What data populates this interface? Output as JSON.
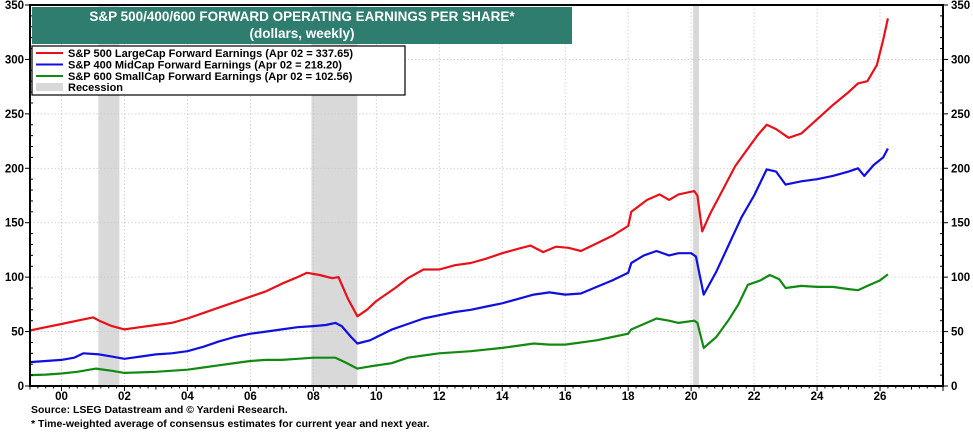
{
  "chart_data": {
    "type": "line",
    "title": "S&P 500/400/600 FORWARD OPERATING EARNINGS PER SHARE*",
    "subtitle": "(dollars, weekly)",
    "xlabel": "",
    "ylabel": "",
    "xlim": [
      1999.0,
      2028.0
    ],
    "ylim": [
      0,
      350
    ],
    "grid": true,
    "legend_position": "top-left",
    "x_ticks": [
      2000,
      2002,
      2004,
      2006,
      2008,
      2010,
      2012,
      2014,
      2016,
      2018,
      2020,
      2022,
      2024,
      2026
    ],
    "x_tick_labels": [
      "00",
      "02",
      "04",
      "06",
      "08",
      "10",
      "12",
      "14",
      "16",
      "18",
      "20",
      "22",
      "24",
      "26"
    ],
    "y_ticks": [
      0,
      50,
      100,
      150,
      200,
      250,
      300,
      350
    ],
    "y_tick_labels": [
      "0",
      "50",
      "100",
      "150",
      "200",
      "250",
      "300",
      "350"
    ],
    "series": [
      {
        "name": "S&P 500 LargeCap Forward Earnings (Apr 02 = 337.65)",
        "color": "#e8111a",
        "x": [
          1999.0,
          1999.5,
          2000.0,
          2000.5,
          2001.0,
          2001.2,
          2001.6,
          2002.0,
          2002.5,
          2003.0,
          2003.5,
          2004.0,
          2004.5,
          2005.0,
          2005.5,
          2006.0,
          2006.5,
          2007.0,
          2007.5,
          2007.8,
          2008.2,
          2008.6,
          2008.8,
          2009.1,
          2009.4,
          2009.7,
          2010.0,
          2010.6,
          2011.0,
          2011.5,
          2012.0,
          2012.5,
          2013.0,
          2013.5,
          2014.0,
          2014.5,
          2014.9,
          2015.3,
          2015.7,
          2016.1,
          2016.5,
          2017.0,
          2017.5,
          2018.0,
          2018.1,
          2018.6,
          2019.0,
          2019.3,
          2019.6,
          2020.1,
          2020.2,
          2020.35,
          2020.6,
          2021.0,
          2021.4,
          2021.8,
          2022.1,
          2022.4,
          2022.7,
          2023.1,
          2023.5,
          2024.0,
          2024.5,
          2025.0,
          2025.3,
          2025.6,
          2025.9,
          2026.1,
          2026.25
        ],
        "values": [
          51,
          54,
          57,
          60,
          63,
          60,
          55,
          52,
          54,
          56,
          58,
          62,
          67,
          72,
          77,
          82,
          87,
          94,
          100,
          104,
          102,
          99,
          100,
          80,
          64,
          70,
          78,
          90,
          99,
          107,
          107,
          111,
          113,
          117,
          122,
          126,
          129,
          123,
          128,
          127,
          124,
          131,
          138,
          147,
          160,
          171,
          176,
          171,
          176,
          179,
          175,
          142,
          158,
          180,
          202,
          218,
          230,
          240,
          236,
          228,
          232,
          245,
          258,
          270,
          278,
          280,
          295,
          318,
          337.65
        ]
      },
      {
        "name": "S&P 400 MidCap Forward Earnings (Apr 02 = 218.20)",
        "color": "#0f0fe0",
        "x": [
          1999.0,
          1999.5,
          2000.0,
          2000.4,
          2000.7,
          2001.2,
          2001.6,
          2002.0,
          2002.5,
          2003.0,
          2003.5,
          2004.0,
          2004.5,
          2005.0,
          2005.5,
          2006.0,
          2006.5,
          2007.0,
          2007.5,
          2008.0,
          2008.4,
          2008.7,
          2008.9,
          2009.2,
          2009.4,
          2009.8,
          2010.5,
          2011.0,
          2011.5,
          2012.0,
          2012.5,
          2013.0,
          2013.5,
          2014.0,
          2014.5,
          2015.0,
          2015.5,
          2016.0,
          2016.5,
          2017.0,
          2017.5,
          2018.0,
          2018.1,
          2018.5,
          2018.9,
          2019.3,
          2019.6,
          2020.0,
          2020.15,
          2020.4,
          2020.8,
          2021.2,
          2021.6,
          2022.0,
          2022.4,
          2022.7,
          2023.0,
          2023.5,
          2024.0,
          2024.5,
          2025.0,
          2025.3,
          2025.5,
          2025.8,
          2026.1,
          2026.25
        ],
        "values": [
          22,
          23,
          24,
          26,
          30,
          29,
          27,
          25,
          27,
          29,
          30,
          32,
          36,
          41,
          45,
          48,
          50,
          52,
          54,
          55,
          56,
          58,
          55,
          45,
          39,
          42,
          52,
          57,
          62,
          65,
          68,
          70,
          73,
          76,
          80,
          84,
          86,
          84,
          85,
          91,
          97,
          104,
          113,
          120,
          124,
          120,
          122,
          122,
          119,
          84,
          105,
          130,
          155,
          175,
          199,
          197,
          185,
          188,
          190,
          193,
          197,
          200,
          193,
          203,
          210,
          218.2
        ]
      },
      {
        "name": "S&P 600 SmallCap Forward Earnings (Apr 02 = 102.56)",
        "color": "#128a12",
        "x": [
          1999.0,
          1999.5,
          2000.0,
          2000.5,
          2001.1,
          2001.6,
          2002.0,
          2002.5,
          2003.0,
          2004.0,
          2004.5,
          2005.0,
          2005.5,
          2006.0,
          2006.5,
          2007.0,
          2007.5,
          2008.0,
          2008.4,
          2008.7,
          2009.0,
          2009.4,
          2009.8,
          2010.5,
          2011.0,
          2011.5,
          2012.0,
          2013.0,
          2014.0,
          2015.0,
          2015.5,
          2016.0,
          2017.0,
          2017.5,
          2018.0,
          2018.1,
          2018.5,
          2018.9,
          2019.3,
          2019.6,
          2020.1,
          2020.2,
          2020.4,
          2020.8,
          2021.2,
          2021.5,
          2021.8,
          2022.2,
          2022.5,
          2022.8,
          2023.0,
          2023.5,
          2024.0,
          2024.5,
          2025.0,
          2025.3,
          2025.6,
          2026.0,
          2026.25
        ],
        "values": [
          10,
          10.5,
          11.5,
          13,
          16,
          14,
          12,
          12.5,
          13,
          15,
          17,
          19,
          21,
          23,
          24,
          24,
          25,
          26,
          26,
          26,
          22,
          16,
          18,
          21,
          26,
          28,
          30,
          32,
          35,
          39,
          38,
          38,
          42,
          45,
          48,
          52,
          57,
          62,
          60,
          58,
          60,
          58,
          35,
          45,
          61,
          75,
          93,
          97,
          102,
          98,
          90,
          92,
          91,
          91,
          89,
          88,
          92,
          97,
          102.56
        ]
      }
    ],
    "recessions": [
      [
        2001.17,
        2001.84
      ],
      [
        2007.94,
        2009.4
      ],
      [
        2020.06,
        2020.25
      ]
    ],
    "recession_label": "Recession",
    "recession_color": "#d9d9d9",
    "title_bg_color": "#2e7d6e"
  },
  "footer": {
    "source": "Source: LSEG Datastream and © Yardeni Research.",
    "footnote": "* Time-weighted average of consensus estimates for current year and next year."
  }
}
